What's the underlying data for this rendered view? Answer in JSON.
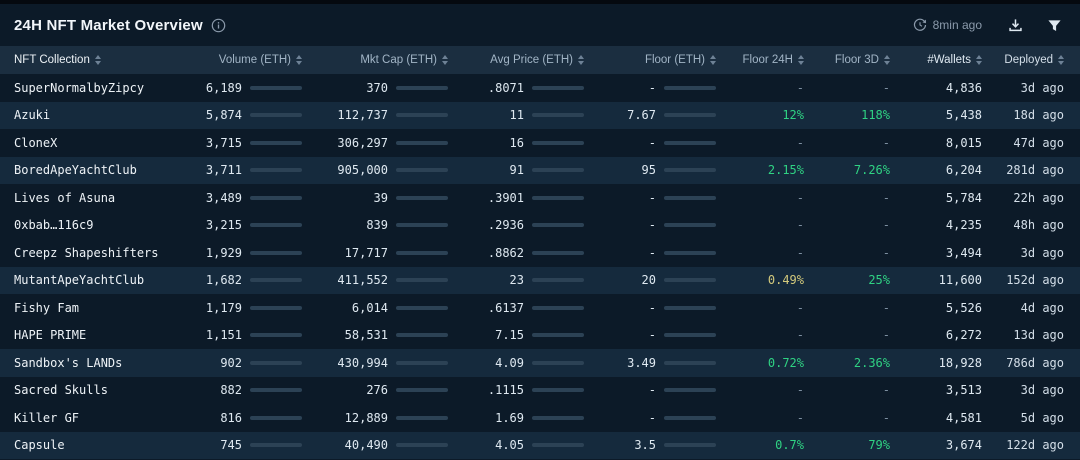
{
  "header": {
    "title": "24H NFT Market Overview",
    "updated": "8min ago"
  },
  "columns": [
    {
      "label": "NFT Collection"
    },
    {
      "label": "Volume (ETH)"
    },
    {
      "label": "Mkt Cap (ETH)"
    },
    {
      "label": "Avg Price (ETH)"
    },
    {
      "label": "Floor (ETH)"
    },
    {
      "label": "Floor 24H"
    },
    {
      "label": "Floor 3D"
    },
    {
      "label": "#Wallets"
    },
    {
      "label": "Deployed"
    }
  ],
  "colors": {
    "bar_fill": "#85c6ea",
    "bar_track": "#2c4255",
    "positive": "#2fd283",
    "warning": "#d3c97c",
    "muted": "#7d8fa0",
    "row_highlight": "#152a3d"
  },
  "rows": [
    {
      "name": "SuperNormalbyZipcy",
      "highlight": false,
      "volume": {
        "text": "6,189",
        "fill": 1.0
      },
      "mktcap": {
        "text": "370",
        "fill": 0
      },
      "avg": {
        "text": ".8071",
        "fill": 0.04
      },
      "floor": {
        "text": "-",
        "fill": 0
      },
      "floor24h": {
        "text": "-",
        "color": "#7d8fa0"
      },
      "floor3d": {
        "text": "-",
        "color": "#7d8fa0"
      },
      "wallets": "4,836",
      "deployed": "3d ago"
    },
    {
      "name": "Azuki",
      "highlight": true,
      "volume": {
        "text": "5,874",
        "fill": 0.95
      },
      "mktcap": {
        "text": "112,737",
        "fill": 0.12
      },
      "avg": {
        "text": "11",
        "fill": 0.12
      },
      "floor": {
        "text": "7.67",
        "fill": 0.08
      },
      "floor24h": {
        "text": "12%",
        "color": "#2fd283"
      },
      "floor3d": {
        "text": "118%",
        "color": "#2fd283"
      },
      "wallets": "5,438",
      "deployed": "18d ago"
    },
    {
      "name": "CloneX",
      "highlight": false,
      "volume": {
        "text": "3,715",
        "fill": 0.6
      },
      "mktcap": {
        "text": "306,297",
        "fill": 0.34
      },
      "avg": {
        "text": "16",
        "fill": 0.18
      },
      "floor": {
        "text": "-",
        "fill": 0
      },
      "floor24h": {
        "text": "-",
        "color": "#7d8fa0"
      },
      "floor3d": {
        "text": "-",
        "color": "#7d8fa0"
      },
      "wallets": "8,015",
      "deployed": "47d ago"
    },
    {
      "name": "BoredApeYachtClub",
      "highlight": true,
      "volume": {
        "text": "3,711",
        "fill": 0.6
      },
      "mktcap": {
        "text": "905,000",
        "fill": 1.0
      },
      "avg": {
        "text": "91",
        "fill": 1.0
      },
      "floor": {
        "text": "95",
        "fill": 0.26
      },
      "floor24h": {
        "text": "2.15%",
        "color": "#2fd283"
      },
      "floor3d": {
        "text": "7.26%",
        "color": "#2fd283"
      },
      "wallets": "6,204",
      "deployed": "281d ago"
    },
    {
      "name": "Lives of Asuna",
      "highlight": false,
      "volume": {
        "text": "3,489",
        "fill": 0.56
      },
      "mktcap": {
        "text": "39",
        "fill": 0
      },
      "avg": {
        "text": ".3901",
        "fill": 0.03
      },
      "floor": {
        "text": "-",
        "fill": 0
      },
      "floor24h": {
        "text": "-",
        "color": "#7d8fa0"
      },
      "floor3d": {
        "text": "-",
        "color": "#7d8fa0"
      },
      "wallets": "5,784",
      "deployed": "22h ago"
    },
    {
      "name": "0xbab…116c9",
      "highlight": false,
      "volume": {
        "text": "3,215",
        "fill": 0.52
      },
      "mktcap": {
        "text": "839",
        "fill": 0
      },
      "avg": {
        "text": ".2936",
        "fill": 0.03
      },
      "floor": {
        "text": "-",
        "fill": 0
      },
      "floor24h": {
        "text": "-",
        "color": "#7d8fa0"
      },
      "floor3d": {
        "text": "-",
        "color": "#7d8fa0"
      },
      "wallets": "4,235",
      "deployed": "48h ago"
    },
    {
      "name": "Creepz Shapeshifters",
      "highlight": false,
      "volume": {
        "text": "1,929",
        "fill": 0.31
      },
      "mktcap": {
        "text": "17,717",
        "fill": 0.05
      },
      "avg": {
        "text": ".8862",
        "fill": 0.04
      },
      "floor": {
        "text": "-",
        "fill": 0
      },
      "floor24h": {
        "text": "-",
        "color": "#7d8fa0"
      },
      "floor3d": {
        "text": "-",
        "color": "#7d8fa0"
      },
      "wallets": "3,494",
      "deployed": "3d ago"
    },
    {
      "name": "MutantApeYachtClub",
      "highlight": true,
      "volume": {
        "text": "1,682",
        "fill": 0.27
      },
      "mktcap": {
        "text": "411,552",
        "fill": 0.45
      },
      "avg": {
        "text": "23",
        "fill": 0.25
      },
      "floor": {
        "text": "20",
        "fill": 0.1
      },
      "floor24h": {
        "text": "0.49%",
        "color": "#d3c97c"
      },
      "floor3d": {
        "text": "25%",
        "color": "#2fd283"
      },
      "wallets": "11,600",
      "deployed": "152d ago"
    },
    {
      "name": "Fishy Fam",
      "highlight": false,
      "volume": {
        "text": "1,179",
        "fill": 0.19
      },
      "mktcap": {
        "text": "6,014",
        "fill": 0.04
      },
      "avg": {
        "text": ".6137",
        "fill": 0.03
      },
      "floor": {
        "text": "-",
        "fill": 0
      },
      "floor24h": {
        "text": "-",
        "color": "#7d8fa0"
      },
      "floor3d": {
        "text": "-",
        "color": "#7d8fa0"
      },
      "wallets": "5,526",
      "deployed": "4d ago"
    },
    {
      "name": "HAPE PRIME",
      "highlight": false,
      "volume": {
        "text": "1,151",
        "fill": 0.19
      },
      "mktcap": {
        "text": "58,531",
        "fill": 0.07
      },
      "avg": {
        "text": "7.15",
        "fill": 0.08
      },
      "floor": {
        "text": "-",
        "fill": 0
      },
      "floor24h": {
        "text": "-",
        "color": "#7d8fa0"
      },
      "floor3d": {
        "text": "-",
        "color": "#7d8fa0"
      },
      "wallets": "6,272",
      "deployed": "13d ago"
    },
    {
      "name": "Sandbox's LANDs",
      "highlight": true,
      "volume": {
        "text": "902",
        "fill": 0.15
      },
      "mktcap": {
        "text": "430,994",
        "fill": 0.48
      },
      "avg": {
        "text": "4.09",
        "fill": 0.05
      },
      "floor": {
        "text": "3.49",
        "fill": 0.06
      },
      "floor24h": {
        "text": "0.72%",
        "color": "#2fd283"
      },
      "floor3d": {
        "text": "2.36%",
        "color": "#2fd283"
      },
      "wallets": "18,928",
      "deployed": "786d ago"
    },
    {
      "name": "Sacred Skulls",
      "highlight": false,
      "volume": {
        "text": "882",
        "fill": 0.14
      },
      "mktcap": {
        "text": "276",
        "fill": 0
      },
      "avg": {
        "text": ".1115",
        "fill": 0.03
      },
      "floor": {
        "text": "-",
        "fill": 0
      },
      "floor24h": {
        "text": "-",
        "color": "#7d8fa0"
      },
      "floor3d": {
        "text": "-",
        "color": "#7d8fa0"
      },
      "wallets": "3,513",
      "deployed": "3d ago"
    },
    {
      "name": "Killer GF",
      "highlight": false,
      "volume": {
        "text": "816",
        "fill": 0.13
      },
      "mktcap": {
        "text": "12,889",
        "fill": 0.04
      },
      "avg": {
        "text": "1.69",
        "fill": 0.04
      },
      "floor": {
        "text": "-",
        "fill": 0
      },
      "floor24h": {
        "text": "-",
        "color": "#7d8fa0"
      },
      "floor3d": {
        "text": "-",
        "color": "#7d8fa0"
      },
      "wallets": "4,581",
      "deployed": "5d ago"
    },
    {
      "name": "Capsule",
      "highlight": true,
      "volume": {
        "text": "745",
        "fill": 0.12
      },
      "mktcap": {
        "text": "40,490",
        "fill": 0.05
      },
      "avg": {
        "text": "4.05",
        "fill": 0.05
      },
      "floor": {
        "text": "3.5",
        "fill": 0.06
      },
      "floor24h": {
        "text": "0.7%",
        "color": "#2fd283"
      },
      "floor3d": {
        "text": "79%",
        "color": "#2fd283"
      },
      "wallets": "3,674",
      "deployed": "122d ago"
    }
  ]
}
